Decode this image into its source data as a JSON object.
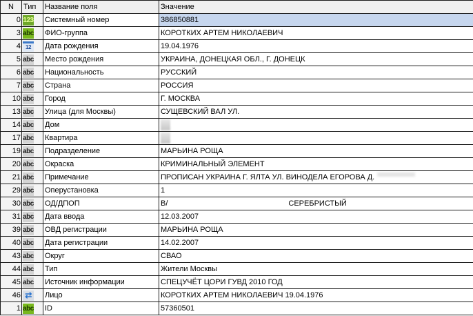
{
  "columns": {
    "n": "N",
    "type": "Тип",
    "name": "Название поля",
    "value": "Значение"
  },
  "selected_row": 0,
  "rows": [
    {
      "n": "0",
      "icon": "num",
      "name": "Системный номер",
      "value": "386850881"
    },
    {
      "n": "3",
      "icon": "abcg",
      "name": "ФИО-группа",
      "value": "КОРОТКИХ АРТЕМ НИКОЛАЕВИЧ"
    },
    {
      "n": "4",
      "icon": "cal",
      "name": "Дата рождения",
      "value": "19.04.1976"
    },
    {
      "n": "5",
      "icon": "abc",
      "name": "Место рождения",
      "value": "УКРАИНА, ДОНЕЦКАЯ ОБЛ., Г. ДОНЕЦК"
    },
    {
      "n": "6",
      "icon": "abc",
      "name": "Национальность",
      "value": "РУССКИЙ"
    },
    {
      "n": "7",
      "icon": "abc",
      "name": "Страна",
      "value": "РОССИЯ"
    },
    {
      "n": "10",
      "icon": "abc",
      "name": "Город",
      "value": "Г. МОСКВА"
    },
    {
      "n": "13",
      "icon": "abc",
      "name": "Улица (для Москвы)",
      "value": "СУЩЕВСКИЙ ВАЛ УЛ."
    },
    {
      "n": "14",
      "icon": "abc",
      "name": "Дом",
      "value": "",
      "blurred": true
    },
    {
      "n": "17",
      "icon": "abc",
      "name": "Квартира",
      "value": "",
      "blurred": true
    },
    {
      "n": "19",
      "icon": "abc",
      "name": "Подразделение",
      "value": "МАРЬИНА РОЩА"
    },
    {
      "n": "20",
      "icon": "abc",
      "name": "Окраска",
      "value": "КРИМИНАЛЬНЫЙ ЭЛЕМЕНТ"
    },
    {
      "n": "21",
      "icon": "abc",
      "name": "Примечание",
      "value": "ПРОПИСАН УКРАИНА Г. ЯЛТА УЛ. ВИНОДЕЛА ЕГОРОВА Д.",
      "blurtail": true
    },
    {
      "n": "29",
      "icon": "abc",
      "name": "Оперустановка",
      "value": "1"
    },
    {
      "n": "30",
      "icon": "abc",
      "name": "ОД/ДПОП",
      "value": "В/",
      "value2": "СЕРЕБРИСТЫЙ"
    },
    {
      "n": "31",
      "icon": "abc",
      "name": "Дата ввода",
      "value": "12.03.2007"
    },
    {
      "n": "39",
      "icon": "abc",
      "name": "ОВД регистрации",
      "value": "МАРЬИНА РОЩА"
    },
    {
      "n": "40",
      "icon": "abc",
      "name": "Дата регистрации",
      "value": "14.02.2007"
    },
    {
      "n": "43",
      "icon": "abc",
      "name": "Округ",
      "value": "СВАО"
    },
    {
      "n": "44",
      "icon": "abc",
      "name": "Тип",
      "value": "Жители Москвы"
    },
    {
      "n": "45",
      "icon": "abc",
      "name": "Источник информации",
      "value": "СПЕЦУЧЁТ ЦОРИ ГУВД 2010 ГОД"
    },
    {
      "n": "46",
      "icon": "swap",
      "name": "Лицо",
      "value": "КОРОТКИХ АРТЕМ НИКОЛАЕВИЧ 19.04.1976"
    },
    {
      "n": "1",
      "icon": "abcg",
      "name": "ID",
      "value": "57360501"
    }
  ],
  "icon_glyphs": {
    "num": "123",
    "abcg": "abc",
    "abc": "abc",
    "cal": "12",
    "swap": "⇄"
  },
  "icon_names": {
    "num": "number-type-icon",
    "abcg": "text-key-type-icon",
    "abc": "text-type-icon",
    "cal": "calendar-icon",
    "swap": "link-icon"
  }
}
